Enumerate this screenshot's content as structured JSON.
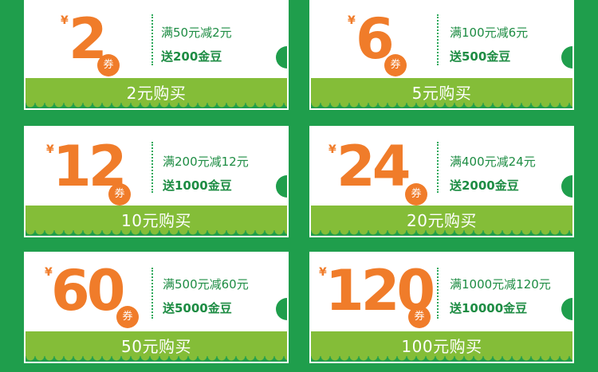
{
  "colors": {
    "background": "#1f9e4c",
    "accent": "#f07c2a",
    "green_text": "#1d8c43",
    "button_bg": "#84bd38"
  },
  "coupons": [
    {
      "currency": "¥",
      "amount": "2",
      "badge": "券",
      "condition": "满50元减2元",
      "bonus": "送200金豆",
      "buy": "2元购买"
    },
    {
      "currency": "¥",
      "amount": "6",
      "badge": "券",
      "condition": "满100元减6元",
      "bonus": "送500金豆",
      "buy": "5元购买"
    },
    {
      "currency": "¥",
      "amount": "12",
      "badge": "券",
      "condition": "满200元减12元",
      "bonus": "送1000金豆",
      "buy": "10元购买"
    },
    {
      "currency": "¥",
      "amount": "24",
      "badge": "券",
      "condition": "满400元减24元",
      "bonus": "送2000金豆",
      "buy": "20元购买"
    },
    {
      "currency": "¥",
      "amount": "60",
      "badge": "券",
      "condition": "满500元减60元",
      "bonus": "送5000金豆",
      "buy": "50元购买"
    },
    {
      "currency": "¥",
      "amount": "120",
      "badge": "券",
      "condition": "满1000元减120元",
      "bonus": "送10000金豆",
      "buy": "100元购买"
    }
  ]
}
